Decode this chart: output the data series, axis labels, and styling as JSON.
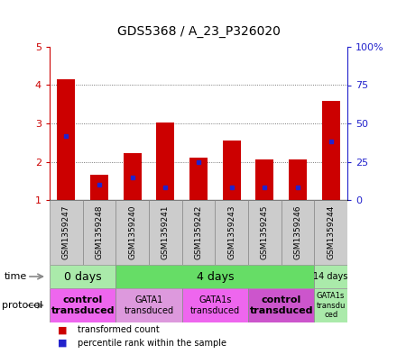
{
  "title": "GDS5368 / A_23_P326020",
  "samples": [
    "GSM1359247",
    "GSM1359248",
    "GSM1359240",
    "GSM1359241",
    "GSM1359242",
    "GSM1359243",
    "GSM1359245",
    "GSM1359246",
    "GSM1359244"
  ],
  "transformed_counts": [
    4.15,
    1.65,
    2.22,
    3.02,
    2.1,
    2.55,
    2.05,
    2.05,
    3.6
  ],
  "percentile_ranks": [
    42,
    10,
    15,
    8,
    25,
    8,
    8,
    8,
    38
  ],
  "ylim_left": [
    1,
    5
  ],
  "ylim_right": [
    0,
    100
  ],
  "yticks_left": [
    1,
    2,
    3,
    4,
    5
  ],
  "yticks_right": [
    0,
    25,
    50,
    75,
    100
  ],
  "bar_color": "#cc0000",
  "percentile_color": "#2222cc",
  "bar_width": 0.55,
  "time_groups": [
    {
      "label": "0 days",
      "start": 0,
      "end": 2,
      "color": "#aaeaaa",
      "fontsize": 9
    },
    {
      "label": "4 days",
      "start": 2,
      "end": 8,
      "color": "#66dd66",
      "fontsize": 9
    },
    {
      "label": "14 days",
      "start": 8,
      "end": 9,
      "color": "#aaeaaa",
      "fontsize": 7
    }
  ],
  "protocol_groups": [
    {
      "label": "control\ntransduced",
      "start": 0,
      "end": 2,
      "color": "#ee66ee",
      "bold": true,
      "fontsize": 8
    },
    {
      "label": "GATA1\ntransduced",
      "start": 2,
      "end": 4,
      "color": "#dd99dd",
      "bold": false,
      "fontsize": 7
    },
    {
      "label": "GATA1s\ntransduced",
      "start": 4,
      "end": 6,
      "color": "#ee66ee",
      "bold": false,
      "fontsize": 7
    },
    {
      "label": "control\ntransduced",
      "start": 6,
      "end": 8,
      "color": "#cc55cc",
      "bold": true,
      "fontsize": 8
    },
    {
      "label": "GATA1s\ntransdu\nced",
      "start": 8,
      "end": 9,
      "color": "#aaeaaa",
      "bold": false,
      "fontsize": 6
    }
  ],
  "grid_color": "#555555",
  "sample_bg_color": "#cccccc",
  "bg_color": "#ffffff",
  "left_tick_color": "#cc0000",
  "right_tick_color": "#2222cc"
}
